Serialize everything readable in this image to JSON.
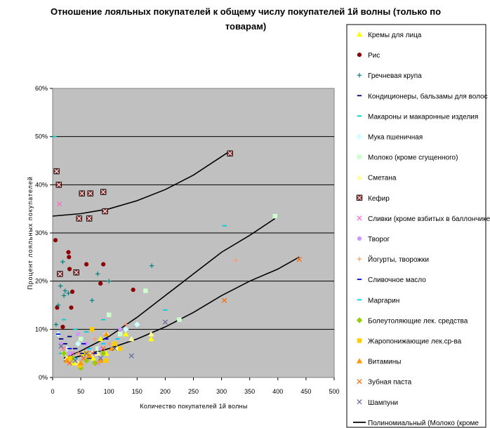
{
  "chart_data": {
    "type": "scatter",
    "title_lines": [
      "Отношение лояльных покупателей к общему числу покупателей 1й волны (только по",
      "товарам)"
    ],
    "xlabel": "Количество покупателей 1й волны",
    "ylabel": "Процент лояльных покупателей",
    "xlim": [
      0,
      500
    ],
    "ylim": [
      0,
      0.6
    ],
    "x_ticks": [
      "0",
      "50",
      "100",
      "150",
      "200",
      "250",
      "300",
      "350",
      "400",
      "450",
      "500"
    ],
    "y_ticks": [
      "0%",
      "10%",
      "20%",
      "30%",
      "40%",
      "50%",
      "60%"
    ],
    "plot_background": "#c0c0c0",
    "grid": "horizontal",
    "legend_position": "right",
    "series": [
      {
        "name": "Кремы для лица",
        "marker": "triangle",
        "color": "#ffff00",
        "points": [
          [
            38,
            0.03
          ],
          [
            55,
            0.05
          ],
          [
            72,
            0.04
          ],
          [
            85,
            0.08
          ],
          [
            95,
            0.05
          ],
          [
            110,
            0.07
          ],
          [
            130,
            0.09
          ],
          [
            175,
            0.08
          ]
        ]
      },
      {
        "name": "Рис",
        "marker": "circle",
        "color": "#8b0000",
        "points": [
          [
            5,
            0.285
          ],
          [
            8,
            0.145
          ],
          [
            18,
            0.105
          ],
          [
            28,
            0.26
          ],
          [
            29,
            0.25
          ],
          [
            30,
            0.225
          ],
          [
            33,
            0.145
          ],
          [
            35,
            0.178
          ],
          [
            60,
            0.235
          ],
          [
            85,
            0.195
          ],
          [
            90,
            0.235
          ],
          [
            143,
            0.182
          ]
        ]
      },
      {
        "name": "Гречневая крупа",
        "marker": "plus",
        "color": "#008080",
        "points": [
          [
            6,
            0.11
          ],
          [
            10,
            0.15
          ],
          [
            14,
            0.19
          ],
          [
            18,
            0.24
          ],
          [
            20,
            0.17
          ],
          [
            22,
            0.18
          ],
          [
            28,
            0.175
          ],
          [
            70,
            0.16
          ],
          [
            80,
            0.215
          ],
          [
            100,
            0.2
          ],
          [
            176,
            0.232
          ]
        ]
      },
      {
        "name": "Кондиционеры, бальзамы для волос",
        "marker": "dash",
        "color": "#000080",
        "points": [
          [
            15,
            0.08
          ],
          [
            22,
            0.07
          ],
          [
            30,
            0.085
          ],
          [
            40,
            0.06
          ],
          [
            52,
            0.05
          ],
          [
            65,
            0.04
          ]
        ]
      },
      {
        "name": "Макароны и макаронные изделия",
        "marker": "dash",
        "color": "#00cccc",
        "points": [
          [
            3,
            0.5
          ],
          [
            20,
            0.12
          ],
          [
            40,
            0.1
          ],
          [
            60,
            0.095
          ],
          [
            90,
            0.12
          ],
          [
            200,
            0.14
          ],
          [
            305,
            0.315
          ]
        ]
      },
      {
        "name": "Мука пшеничная",
        "marker": "diamond",
        "color": "#ccffff",
        "points": [
          [
            10,
            0.09
          ],
          [
            25,
            0.06
          ],
          [
            45,
            0.07
          ],
          [
            70,
            0.05
          ],
          [
            95,
            0.09
          ],
          [
            130,
            0.1
          ],
          [
            150,
            0.11
          ]
        ]
      },
      {
        "name": "Молоко (кроме сгущенного)",
        "marker": "square",
        "color": "#ccffcc",
        "points": [
          [
            20,
            0.05
          ],
          [
            50,
            0.08
          ],
          [
            80,
            0.06
          ],
          [
            100,
            0.13
          ],
          [
            120,
            0.09
          ],
          [
            165,
            0.18
          ],
          [
            225,
            0.12
          ],
          [
            395,
            0.335
          ]
        ]
      },
      {
        "name": "Сметана",
        "marker": "triangle",
        "color": "#ffff99",
        "points": [
          [
            25,
            0.04
          ],
          [
            45,
            0.03
          ],
          [
            80,
            0.05
          ],
          [
            115,
            0.06
          ],
          [
            140,
            0.08
          ],
          [
            175,
            0.09
          ]
        ]
      },
      {
        "name": "Кефир",
        "marker": "boxx",
        "color": "#993333",
        "points": [
          [
            7,
            0.428
          ],
          [
            11,
            0.4
          ],
          [
            13,
            0.215
          ],
          [
            42,
            0.218
          ],
          [
            47,
            0.33
          ],
          [
            52,
            0.382
          ],
          [
            65,
            0.33
          ],
          [
            67,
            0.382
          ],
          [
            90,
            0.385
          ],
          [
            93,
            0.345
          ],
          [
            315,
            0.465
          ]
        ]
      },
      {
        "name": "Сливки (кроме взбитых в баллончике)",
        "marker": "x",
        "color": "#ff66cc",
        "points": [
          [
            12,
            0.36
          ],
          [
            20,
            0.06
          ],
          [
            35,
            0.05
          ],
          [
            55,
            0.04
          ],
          [
            80,
            0.03
          ]
        ]
      },
      {
        "name": "Творог",
        "marker": "circle",
        "color": "#cc99ff",
        "points": [
          [
            15,
            0.07
          ],
          [
            30,
            0.05
          ],
          [
            45,
            0.09
          ],
          [
            60,
            0.07
          ],
          [
            85,
            0.06
          ],
          [
            120,
            0.1
          ]
        ]
      },
      {
        "name": "Йогурты, творожки",
        "marker": "plus",
        "color": "#ff9966",
        "points": [
          [
            20,
            0.06
          ],
          [
            45,
            0.05
          ],
          [
            75,
            0.08
          ],
          [
            100,
            0.07
          ],
          [
            130,
            0.11
          ],
          [
            325,
            0.243
          ]
        ]
      },
      {
        "name": "Сливочное масло",
        "marker": "dash",
        "color": "#0000cc",
        "points": [
          [
            10,
            0.09
          ],
          [
            30,
            0.06
          ],
          [
            55,
            0.07
          ],
          [
            75,
            0.05
          ],
          [
            95,
            0.08
          ]
        ]
      },
      {
        "name": "Маргарин",
        "marker": "dash",
        "color": "#00ccff",
        "points": [
          [
            15,
            0.05
          ],
          [
            40,
            0.04
          ],
          [
            65,
            0.06
          ],
          [
            90,
            0.07
          ],
          [
            115,
            0.08
          ]
        ]
      },
      {
        "name": "Болеутоляющие лек. средства",
        "marker": "diamond",
        "color": "#99cc00",
        "points": [
          [
            20,
            0.05
          ],
          [
            35,
            0.04
          ],
          [
            50,
            0.02
          ],
          [
            60,
            0.035
          ],
          [
            75,
            0.03
          ],
          [
            90,
            0.05
          ]
        ]
      },
      {
        "name": "Жаропонижающие лек.ср-ва",
        "marker": "square",
        "color": "#ffcc00",
        "points": [
          [
            30,
            0.04
          ],
          [
            48,
            0.025
          ],
          [
            60,
            0.05
          ],
          [
            70,
            0.1
          ],
          [
            95,
            0.035
          ],
          [
            110,
            0.07
          ],
          [
            120,
            0.06
          ]
        ]
      },
      {
        "name": "Витамины",
        "marker": "triangle",
        "color": "#ff9900",
        "points": [
          [
            25,
            0.035
          ],
          [
            50,
            0.03
          ],
          [
            65,
            0.045
          ],
          [
            85,
            0.035
          ],
          [
            95,
            0.09
          ],
          [
            105,
            0.06
          ]
        ]
      },
      {
        "name": "Зубная паста",
        "marker": "x",
        "color": "#ff6600",
        "points": [
          [
            30,
            0.03
          ],
          [
            55,
            0.04
          ],
          [
            70,
            0.05
          ],
          [
            90,
            0.06
          ],
          [
            305,
            0.16
          ],
          [
            438,
            0.245
          ]
        ]
      },
      {
        "name": "Шампуни",
        "marker": "x",
        "color": "#666699",
        "points": [
          [
            15,
            0.065
          ],
          [
            40,
            0.035
          ],
          [
            60,
            0.05
          ],
          [
            85,
            0.04
          ],
          [
            110,
            0.06
          ],
          [
            140,
            0.045
          ],
          [
            200,
            0.115
          ]
        ]
      }
    ],
    "trendlines": [
      {
        "fit": "polynomial",
        "points": [
          [
            0,
            0.335
          ],
          [
            50,
            0.34
          ],
          [
            100,
            0.35
          ],
          [
            150,
            0.367
          ],
          [
            200,
            0.39
          ],
          [
            250,
            0.42
          ],
          [
            315,
            0.47
          ]
        ]
      },
      {
        "fit": "polynomial",
        "points": [
          [
            20,
            0.04
          ],
          [
            50,
            0.055
          ],
          [
            100,
            0.085
          ],
          [
            150,
            0.125
          ],
          [
            200,
            0.17
          ],
          [
            250,
            0.215
          ],
          [
            300,
            0.26
          ],
          [
            350,
            0.295
          ],
          [
            395,
            0.33
          ]
        ]
      },
      {
        "fit": "polynomial",
        "points": [
          [
            20,
            0.035
          ],
          [
            50,
            0.045
          ],
          [
            100,
            0.06
          ],
          [
            150,
            0.08
          ],
          [
            200,
            0.105
          ],
          [
            250,
            0.135
          ],
          [
            300,
            0.17
          ],
          [
            350,
            0.2
          ],
          [
            400,
            0.225
          ],
          [
            438,
            0.25
          ]
        ]
      }
    ],
    "trendline_legend_label": "Полиномиальный (Молоко (кроме"
  }
}
